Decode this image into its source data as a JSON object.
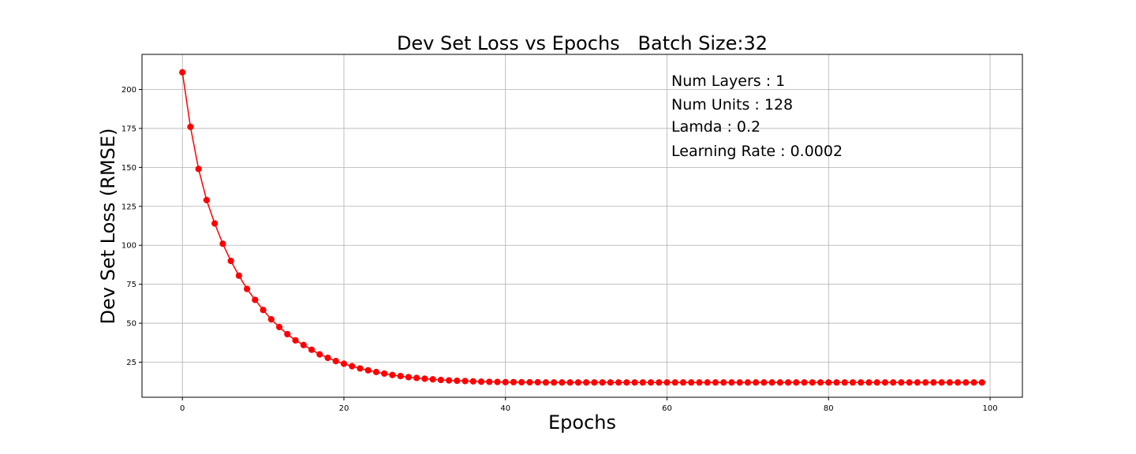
{
  "chart_data": {
    "type": "line",
    "title": "Dev Set Loss vs Epochs   Batch Size:32",
    "xlabel": "Epochs",
    "ylabel": "Dev Set Loss (RMSE)",
    "xlim": [
      -5,
      104
    ],
    "ylim": [
      2.5,
      222.5
    ],
    "xticks": [
      0,
      20,
      40,
      60,
      80,
      100
    ],
    "yticks": [
      25,
      50,
      75,
      100,
      125,
      150,
      175,
      200
    ],
    "grid": true,
    "series": [
      {
        "color": "#ff0000",
        "marker": "circle",
        "x": [
          0,
          1,
          2,
          3,
          4,
          5,
          6,
          7,
          8,
          9,
          10,
          11,
          12,
          13,
          14,
          15,
          16,
          17,
          18,
          19,
          20,
          21,
          22,
          23,
          24,
          25,
          26,
          27,
          28,
          29,
          30,
          31,
          32,
          33,
          34,
          35,
          36,
          37,
          38,
          39,
          40,
          41,
          42,
          43,
          44,
          45,
          46,
          47,
          48,
          49,
          50,
          51,
          52,
          53,
          54,
          55,
          56,
          57,
          58,
          59,
          60,
          61,
          62,
          63,
          64,
          65,
          66,
          67,
          68,
          69,
          70,
          71,
          72,
          73,
          74,
          75,
          76,
          77,
          78,
          79,
          80,
          81,
          82,
          83,
          84,
          85,
          86,
          87,
          88,
          89,
          90,
          91,
          92,
          93,
          94,
          95,
          96,
          97,
          98,
          99
        ],
        "y": [
          211,
          176,
          149,
          129,
          114,
          101,
          90,
          80.5,
          72,
          65,
          58.5,
          52.5,
          47.5,
          43,
          39,
          36,
          33,
          30,
          27.8,
          25.7,
          24,
          22.4,
          21,
          19.8,
          18.7,
          17.7,
          16.8,
          16.1,
          15.4,
          14.9,
          14.4,
          14,
          13.6,
          13.3,
          13.1,
          12.9,
          12.7,
          12.5,
          12.4,
          12.3,
          12.2,
          12.2,
          12.1,
          12.1,
          12.1,
          12,
          12,
          12,
          12,
          12,
          12,
          12,
          12,
          12,
          12,
          12,
          12,
          12,
          12,
          12,
          12,
          12,
          12,
          12,
          12,
          12,
          12,
          12,
          12,
          12,
          12,
          12,
          12,
          12,
          12,
          12,
          12,
          12,
          12,
          12,
          12,
          12,
          12,
          12,
          12,
          12,
          12,
          12,
          12,
          12,
          12,
          12,
          12,
          12,
          12,
          12,
          12,
          12,
          12,
          12
        ]
      }
    ],
    "annotations": [
      "Num Layers : 1",
      "Num Units : 128",
      "Lamda : 0.2",
      "Learning Rate : 0.0002"
    ]
  }
}
